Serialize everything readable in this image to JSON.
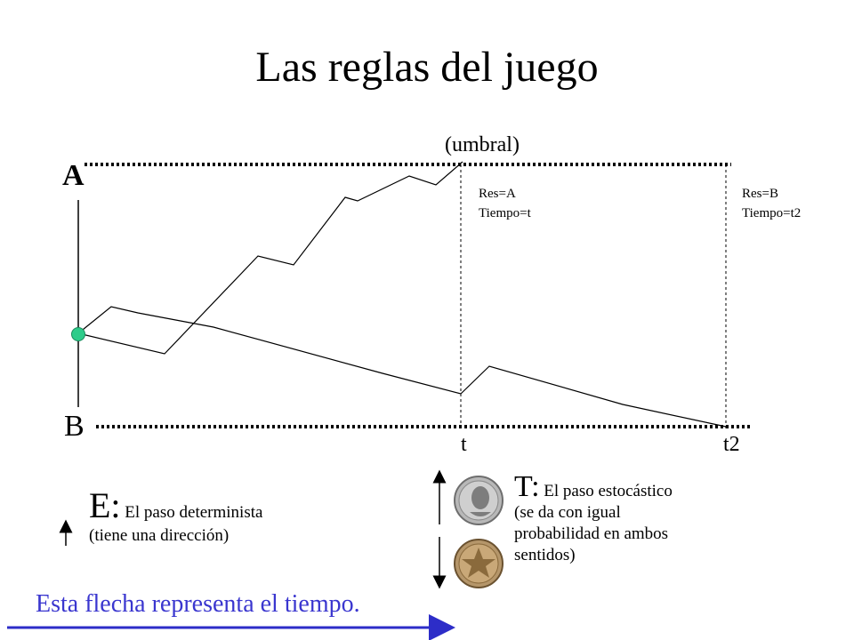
{
  "title": "Las reglas del juego",
  "labels": {
    "umbral": "(umbral)",
    "A": "A",
    "B": "B",
    "t": "t",
    "t2": "t2",
    "res_a": "Res=A",
    "tiempo_t": "Tiempo=t",
    "res_b": "Res=B",
    "tiempo_t2": "Tiempo=t2"
  },
  "t_text": {
    "big": "T:",
    "line1": " El paso estocástico",
    "line2": "(se da con igual",
    "line3": "probabilidad en ambos",
    "line4": "sentidos)"
  },
  "e_text": {
    "big": "E:",
    "line1": " El paso determinista",
    "line2": "(tiene una dirección)"
  },
  "bottom_text": "Esta flecha representa el tiempo.",
  "colors": {
    "start_dot": "#2ecc8a",
    "bottom_text": "#3a36cf",
    "time_arrow": "#2d2dc8"
  }
}
